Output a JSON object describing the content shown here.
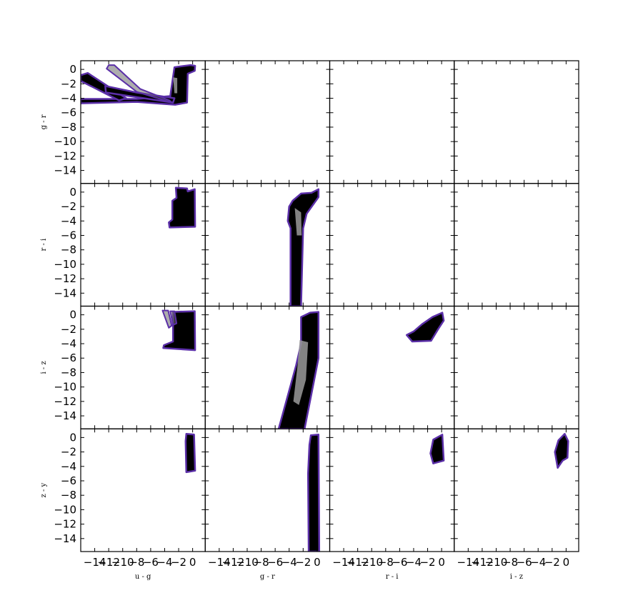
{
  "chart_data": {
    "type": "scatter",
    "layout": "corner-matrix",
    "rows": 4,
    "cols": 4,
    "x_labels": [
      "u - g",
      "g - r",
      "r - i",
      "i - z"
    ],
    "y_labels": [
      "g - r",
      "r - i",
      "i - z",
      "z - y"
    ],
    "xlim": [
      -16,
      1.8
    ],
    "ylim": [
      -15.8,
      1.2
    ],
    "x_ticks": [
      -14,
      -12,
      -10,
      -8,
      -6,
      -4,
      -2,
      0
    ],
    "y_ticks": [
      0,
      -2,
      -4,
      -6,
      -8,
      -10,
      -12,
      -14
    ],
    "x_tick_labels": [
      "−14",
      "−12",
      "−10",
      "−8",
      "−6",
      "−4",
      "−2",
      "0"
    ],
    "y_tick_labels": [
      "0",
      "−2",
      "−4",
      "−6",
      "−8",
      "−10",
      "−12",
      "−14"
    ],
    "grid": false,
    "colors": {
      "density": "#000000",
      "outline": "#5b2fa8",
      "core": "#9a9a9a"
    },
    "panels": [
      {
        "row": 0,
        "col": 0,
        "regions": [
          {
            "role": "fill",
            "points": [
              [
                -16,
                -4.1
              ],
              [
                -16,
                -4.7
              ],
              [
                -8,
                -4.5
              ],
              [
                -2.5,
                -4.9
              ],
              [
                -0.8,
                -4.6
              ],
              [
                -0.7,
                -0.6
              ],
              [
                0.3,
                -0.2
              ],
              [
                0.35,
                0.5
              ],
              [
                -0.3,
                0.6
              ],
              [
                -2.6,
                0.3
              ],
              [
                -3.2,
                -3.7
              ],
              [
                -8,
                -4.1
              ]
            ]
          },
          {
            "role": "fill",
            "points": [
              [
                -16,
                -0.8
              ],
              [
                -16,
                -1.6
              ],
              [
                -10.5,
                -4.3
              ],
              [
                -9.5,
                -4.0
              ],
              [
                -15,
                -0.5
              ]
            ]
          },
          {
            "role": "fill",
            "points": [
              [
                -12.5,
                -2.3
              ],
              [
                -12.4,
                -3.2
              ],
              [
                -2.8,
                -4.6
              ],
              [
                -2.6,
                -4.0
              ],
              [
                -8,
                -3.2
              ]
            ]
          },
          {
            "role": "outline",
            "points": [
              [
                -12,
                0.6
              ],
              [
                -11.2,
                0.6
              ],
              [
                -7.5,
                -2.7
              ],
              [
                -3.3,
                -4.3
              ],
              [
                -3.0,
                -4.6
              ],
              [
                -8,
                -3.1
              ],
              [
                -12.3,
                0.1
              ]
            ]
          },
          {
            "role": "core",
            "points": [
              [
                -2.8,
                -1.1
              ],
              [
                -2.2,
                -1.2
              ],
              [
                -2.2,
                -3.3
              ],
              [
                -2.6,
                -3.3
              ]
            ]
          }
        ]
      },
      {
        "row": 1,
        "col": 0,
        "regions": [
          {
            "role": "fill",
            "points": [
              [
                -2.4,
                0.6
              ],
              [
                -0.8,
                0.5
              ],
              [
                -0.7,
                0.1
              ],
              [
                0.3,
                0.4
              ],
              [
                0.35,
                -4.8
              ],
              [
                -3.3,
                -4.9
              ],
              [
                -3.4,
                -4.2
              ],
              [
                -2.9,
                -3.8
              ],
              [
                -2.9,
                -1.2
              ],
              [
                -2.3,
                -0.8
              ]
            ]
          }
        ]
      },
      {
        "row": 1,
        "col": 1,
        "regions": [
          {
            "role": "fill",
            "points": [
              [
                -3.5,
                -1.2
              ],
              [
                -2.3,
                -0.2
              ],
              [
                -0.8,
                -0.1
              ],
              [
                0.2,
                0.4
              ],
              [
                0.2,
                -0.7
              ],
              [
                -1.5,
                -3.0
              ],
              [
                -2.0,
                -5.0
              ],
              [
                -2.3,
                -15.8
              ],
              [
                -3.8,
                -15.8
              ],
              [
                -3.8,
                -5.0
              ],
              [
                -4.2,
                -4.0
              ],
              [
                -4.0,
                -2.0
              ]
            ]
          },
          {
            "role": "core",
            "points": [
              [
                -3.2,
                -2.2
              ],
              [
                -2.3,
                -2.8
              ],
              [
                -2.2,
                -6.0
              ],
              [
                -2.9,
                -6.0
              ]
            ]
          }
        ]
      },
      {
        "row": 2,
        "col": 0,
        "regions": [
          {
            "role": "fill",
            "points": [
              [
                -2.8,
                0.4
              ],
              [
                0.3,
                0.5
              ],
              [
                0.35,
                -4.9
              ],
              [
                -4.2,
                -4.6
              ],
              [
                -4.1,
                -4.2
              ],
              [
                -2.8,
                -3.7
              ]
            ]
          },
          {
            "role": "outline",
            "points": [
              [
                -4.3,
                0.6
              ],
              [
                -3.5,
                0.6
              ],
              [
                -3.0,
                -1.5
              ],
              [
                -3.4,
                -1.8
              ]
            ]
          },
          {
            "role": "outline",
            "points": [
              [
                -3.2,
                0.5
              ],
              [
                -2.6,
                0.5
              ],
              [
                -2.3,
                -1.2
              ],
              [
                -2.8,
                -1.4
              ]
            ]
          }
        ]
      },
      {
        "row": 2,
        "col": 1,
        "regions": [
          {
            "role": "fill",
            "points": [
              [
                -2.3,
                -0.3
              ],
              [
                -1.0,
                0.3
              ],
              [
                0.2,
                0.4
              ],
              [
                0.2,
                -6.0
              ],
              [
                -1.8,
                -15.8
              ],
              [
                -5.5,
                -15.8
              ],
              [
                -3.0,
                -7.0
              ],
              [
                -2.3,
                -4.0
              ]
            ]
          },
          {
            "role": "core",
            "points": [
              [
                -2.5,
                -3.5
              ],
              [
                -1.3,
                -3.8
              ],
              [
                -1.6,
                -9.0
              ],
              [
                -2.6,
                -12.5
              ],
              [
                -3.4,
                -12.0
              ],
              [
                -2.8,
                -7.0
              ]
            ]
          }
        ]
      },
      {
        "row": 2,
        "col": 2,
        "regions": [
          {
            "role": "fill",
            "points": [
              [
                -5.0,
                -2.8
              ],
              [
                -4.0,
                -2.3
              ],
              [
                -2.8,
                -1.3
              ],
              [
                -1.3,
                -0.3
              ],
              [
                0.1,
                0.3
              ],
              [
                0.3,
                -0.8
              ],
              [
                -0.5,
                -2.0
              ],
              [
                -1.5,
                -3.6
              ],
              [
                -4.2,
                -3.7
              ]
            ]
          }
        ]
      },
      {
        "row": 3,
        "col": 0,
        "regions": [
          {
            "role": "fill",
            "points": [
              [
                -0.9,
                0.5
              ],
              [
                0.2,
                0.4
              ],
              [
                0.35,
                -4.6
              ],
              [
                -0.9,
                -4.8
              ],
              [
                -1.0,
                -0.5
              ]
            ]
          }
        ]
      },
      {
        "row": 3,
        "col": 1,
        "regions": [
          {
            "role": "fill",
            "points": [
              [
                -0.9,
                0.3
              ],
              [
                0.2,
                0.4
              ],
              [
                0.3,
                -15.8
              ],
              [
                -1.2,
                -15.8
              ],
              [
                -1.3,
                -5.0
              ],
              [
                -1.1,
                -1.0
              ]
            ]
          }
        ]
      },
      {
        "row": 3,
        "col": 2,
        "regions": [
          {
            "role": "fill",
            "points": [
              [
                -1.2,
                -0.3
              ],
              [
                0.1,
                0.4
              ],
              [
                0.3,
                -3.2
              ],
              [
                -1.2,
                -3.6
              ],
              [
                -1.6,
                -2.2
              ]
            ]
          }
        ]
      },
      {
        "row": 3,
        "col": 3,
        "regions": [
          {
            "role": "fill",
            "points": [
              [
                -1.1,
                -0.4
              ],
              [
                -0.2,
                0.5
              ],
              [
                0.3,
                -0.5
              ],
              [
                0.2,
                -2.8
              ],
              [
                -0.5,
                -3.2
              ],
              [
                -1.2,
                -4.2
              ],
              [
                -1.6,
                -2.0
              ]
            ]
          }
        ]
      }
    ]
  }
}
